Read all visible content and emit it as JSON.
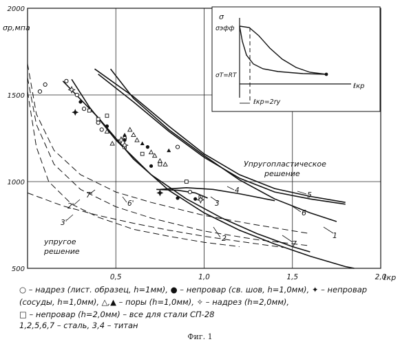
{
  "chart_data": {
    "type": "line",
    "ylabel": "σр,мпа",
    "xlabel": "ℓкр",
    "xlim": [
      0,
      2.0
    ],
    "ylim": [
      500,
      2000
    ],
    "grid": true,
    "x_ticks": [
      "0,5",
      "1,0",
      "1,5",
      "2,0"
    ],
    "y_ticks": [
      "500",
      "1000",
      "1500",
      "2000"
    ],
    "series": [
      {
        "name": "1",
        "style": "solid",
        "points": [
          [
            0.47,
            1650
          ],
          [
            0.6,
            1480
          ],
          [
            0.8,
            1300
          ],
          [
            1.0,
            1150
          ],
          [
            1.2,
            1010
          ],
          [
            1.4,
            900
          ],
          [
            1.6,
            820
          ],
          [
            1.75,
            770
          ]
        ]
      },
      {
        "name": "2",
        "style": "solid",
        "points": [
          [
            0.25,
            1590
          ],
          [
            0.35,
            1430
          ],
          [
            0.5,
            1240
          ],
          [
            0.7,
            1040
          ],
          [
            0.9,
            900
          ],
          [
            1.1,
            790
          ],
          [
            1.3,
            700
          ],
          [
            1.5,
            625
          ],
          [
            1.6,
            595
          ]
        ]
      },
      {
        "name": "3",
        "style": "solid",
        "points": [
          [
            0.73,
            955
          ],
          [
            0.85,
            950
          ],
          [
            0.95,
            935
          ],
          [
            1.02,
            905
          ]
        ]
      },
      {
        "name": "4",
        "style": "solid",
        "points": [
          [
            0.75,
            955
          ],
          [
            0.9,
            965
          ],
          [
            1.05,
            955
          ],
          [
            1.2,
            930
          ],
          [
            1.4,
            890
          ]
        ]
      },
      {
        "name": "5",
        "style": "solid",
        "points": [
          [
            0.38,
            1650
          ],
          [
            0.6,
            1490
          ],
          [
            0.8,
            1320
          ],
          [
            1.0,
            1160
          ],
          [
            1.2,
            1040
          ],
          [
            1.4,
            960
          ],
          [
            1.6,
            915
          ],
          [
            1.8,
            880
          ]
        ]
      },
      {
        "name": "6",
        "style": "solid",
        "points": [
          [
            0.4,
            1620
          ],
          [
            0.6,
            1460
          ],
          [
            0.8,
            1290
          ],
          [
            1.0,
            1140
          ],
          [
            1.2,
            1020
          ],
          [
            1.4,
            940
          ],
          [
            1.6,
            900
          ],
          [
            1.8,
            870
          ]
        ]
      },
      {
        "name": "7",
        "style": "solid",
        "points": [
          [
            0.2,
            1580
          ],
          [
            0.4,
            1370
          ],
          [
            0.6,
            1130
          ],
          [
            0.8,
            950
          ],
          [
            1.0,
            820
          ],
          [
            1.2,
            720
          ],
          [
            1.4,
            640
          ],
          [
            1.6,
            570
          ],
          [
            1.8,
            510
          ],
          [
            1.85,
            500
          ]
        ]
      },
      {
        "name": "2'",
        "style": "dashed",
        "points": [
          [
            0.0,
            1600
          ],
          [
            0.05,
            1330
          ],
          [
            0.15,
            1100
          ],
          [
            0.3,
            955
          ],
          [
            0.5,
            855
          ],
          [
            0.7,
            790
          ],
          [
            1.0,
            715
          ],
          [
            1.3,
            665
          ],
          [
            1.6,
            630
          ]
        ]
      },
      {
        "name": "3'",
        "style": "dashed",
        "points": [
          [
            0.0,
            1520
          ],
          [
            0.05,
            1200
          ],
          [
            0.12,
            1000
          ],
          [
            0.25,
            870
          ],
          [
            0.4,
            795
          ],
          [
            0.6,
            725
          ],
          [
            0.8,
            685
          ],
          [
            1.0,
            650
          ],
          [
            1.2,
            625
          ]
        ]
      },
      {
        "name": "6'",
        "style": "dashed",
        "points": [
          [
            0.0,
            935
          ],
          [
            0.2,
            860
          ],
          [
            0.4,
            805
          ],
          [
            0.6,
            760
          ],
          [
            0.8,
            720
          ],
          [
            1.0,
            685
          ],
          [
            1.2,
            655
          ],
          [
            1.45,
            620
          ]
        ]
      },
      {
        "name": "7'",
        "style": "dashed",
        "points": [
          [
            0.0,
            1680
          ],
          [
            0.05,
            1390
          ],
          [
            0.15,
            1180
          ],
          [
            0.3,
            1040
          ],
          [
            0.5,
            940
          ],
          [
            0.7,
            880
          ],
          [
            1.0,
            805
          ],
          [
            1.3,
            750
          ],
          [
            1.6,
            700
          ]
        ]
      }
    ],
    "markers": [
      {
        "type": "open-circle",
        "points": [
          [
            0.07,
            1520
          ],
          [
            0.1,
            1560
          ],
          [
            0.22,
            1580
          ],
          [
            0.28,
            1500
          ],
          [
            0.32,
            1420
          ],
          [
            0.4,
            1340
          ],
          [
            0.42,
            1300
          ],
          [
            0.55,
            1250
          ],
          [
            0.85,
            1200
          ],
          [
            0.92,
            940
          ]
        ]
      },
      {
        "type": "filled-circle",
        "points": [
          [
            0.3,
            1460
          ],
          [
            0.45,
            1320
          ],
          [
            0.55,
            1240
          ],
          [
            0.68,
            1200
          ],
          [
            0.7,
            1090
          ],
          [
            0.85,
            905
          ],
          [
            0.95,
            900
          ]
        ]
      },
      {
        "type": "open-triangle",
        "points": [
          [
            0.45,
            1290
          ],
          [
            0.48,
            1220
          ],
          [
            0.58,
            1300
          ],
          [
            0.6,
            1270
          ],
          [
            0.62,
            1240
          ],
          [
            0.7,
            1170
          ],
          [
            0.72,
            1150
          ],
          [
            0.75,
            1120
          ],
          [
            0.78,
            1100
          ]
        ]
      },
      {
        "type": "filled-triangle",
        "points": [
          [
            0.55,
            1270
          ],
          [
            0.65,
            1220
          ],
          [
            0.8,
            1180
          ]
        ]
      },
      {
        "type": "open-square",
        "points": [
          [
            0.35,
            1410
          ],
          [
            0.4,
            1360
          ],
          [
            0.45,
            1380
          ],
          [
            0.55,
            1200
          ],
          [
            0.65,
            1160
          ],
          [
            0.75,
            1100
          ],
          [
            0.9,
            1000
          ],
          [
            0.98,
            910
          ]
        ]
      },
      {
        "type": "open-star",
        "points": [
          [
            0.25,
            1530
          ],
          [
            0.53,
            1240
          ],
          [
            0.55,
            1210
          ],
          [
            0.98,
            895
          ]
        ]
      },
      {
        "type": "filled-star",
        "points": [
          [
            0.27,
            1400
          ],
          [
            0.75,
            935
          ]
        ]
      }
    ],
    "annotations": [
      "1",
      "2",
      "3",
      "4",
      "5",
      "6",
      "7",
      "2'",
      "3'",
      "6'",
      "7'",
      "Упругопластическое решение",
      "упругое решение"
    ],
    "inset": {
      "ylabel": "σ",
      "y_ticks": [
        "σэфф",
        "σT=RT"
      ],
      "xlabel": "ℓкр",
      "dim_label": "ℓкр=2rу"
    }
  },
  "legend_lines": [
    "○ – надрез (лист. образец, h=1мм), ● – непровар (св. шов, h=1,0мм), ✦ – непровар",
    "(сосуды, h=1,0мм), △,▲ – поры (h=1,0мм), ✧ – надрез (h=2,0мм),",
    "□ – непровар (h=2,0мм) – все для стали СП-28",
    "1,2,5,6,7 – сталь, 3,4 – титан"
  ],
  "caption": "Фиг. 1"
}
